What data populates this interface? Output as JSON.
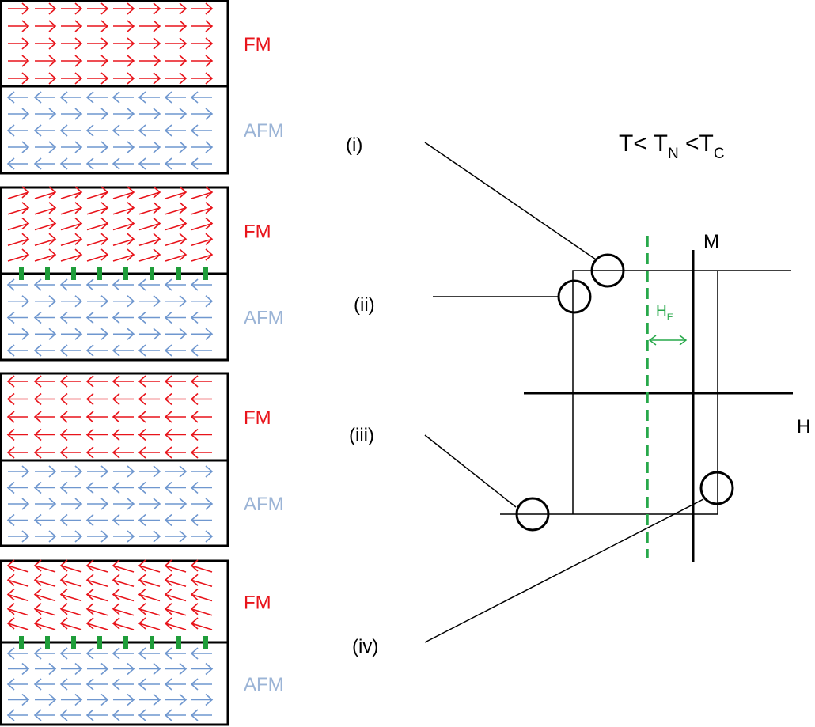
{
  "colors": {
    "fm": "#e8141b",
    "afm": "#6f97cf",
    "afm_label": "#9bb4d6",
    "pinning": "#1f9d3a",
    "exchange_bias": "#27a84a",
    "line": "#000000"
  },
  "panels": [
    {
      "fm_label": "FM",
      "afm_label": "AFM",
      "fm_direction": "right",
      "afm_top_direction": "left",
      "fm_canted": false,
      "pinned": false
    },
    {
      "fm_label": "FM",
      "afm_label": "AFM",
      "fm_direction": "right",
      "afm_top_direction": "left",
      "fm_canted": true,
      "pinned": true
    },
    {
      "fm_label": "FM",
      "afm_label": "AFM",
      "fm_direction": "left",
      "afm_top_direction": "right",
      "fm_canted": false,
      "pinned": false
    },
    {
      "fm_label": "FM",
      "afm_label": "AFM",
      "fm_direction": "left",
      "afm_top_direction": "left",
      "fm_canted": true,
      "pinned": true
    }
  ],
  "loop": {
    "condition": {
      "lead": "T< T",
      "sub_n": "N",
      "mid": " <T",
      "sub_c": "C"
    },
    "axis_h": "H",
    "axis_m": "M",
    "exchange_field": {
      "main": "H",
      "sub": "E"
    },
    "points": [
      {
        "label": "(i)"
      },
      {
        "label": "(ii)"
      },
      {
        "label": "(iii)"
      },
      {
        "label": "(iv)"
      }
    ]
  }
}
